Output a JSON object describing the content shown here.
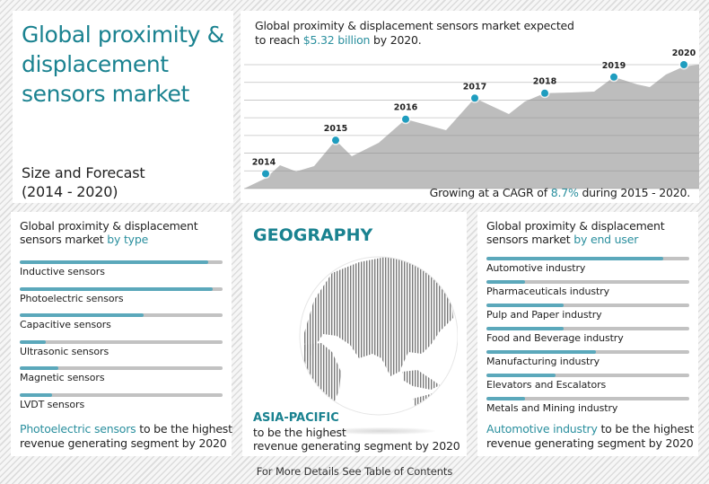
{
  "title_panel": {
    "title": "Global proximity & displacement sensors market",
    "subtitle_line1": "Size and Forecast",
    "subtitle_line2": "(2014 - 2020)"
  },
  "chart_panel": {
    "headline_line1": "Global proximity & displacement sensors market expected",
    "headline_line2_pre": "to reach ",
    "headline_highlight": "$5.32 billion",
    "headline_line2_post": " by 2020.",
    "footer_pre": "Growing at a CAGR of ",
    "footer_highlight": "8.7%",
    "footer_post": " during 2015 - 2020."
  },
  "chart_data": {
    "type": "area",
    "title": "Global proximity & displacement sensors market expected to reach $5.32 billion by 2020.",
    "subtitle": "Growing at a CAGR of 8.7% during 2015 - 2020.",
    "xlabel": "",
    "ylabel": "",
    "categories": [
      "2014",
      "2015",
      "2016",
      "2017",
      "2018",
      "2019",
      "2020"
    ],
    "values_relative_height": [
      0.12,
      0.39,
      0.56,
      0.73,
      0.77,
      0.9,
      1.0
    ],
    "annotations": {
      "2020_value": "$5.32 billion",
      "cagr_2015_2020": "8.7%"
    },
    "grid": true,
    "gridlines": 8,
    "marker_color": "#1f9dbf",
    "area_color": "#bdbdbd"
  },
  "by_type": {
    "heading_pre": "Global proximity & displacement sensors market ",
    "heading_highlight": "by type",
    "items": [
      {
        "label": "Inductive sensors",
        "pct": 93
      },
      {
        "label": "Photoelectric sensors",
        "pct": 95
      },
      {
        "label": "Capacitive sensors",
        "pct": 61
      },
      {
        "label": "Ultrasonic sensors",
        "pct": 13
      },
      {
        "label": "Magnetic sensors",
        "pct": 19
      },
      {
        "label": "LVDT sensors",
        "pct": 16
      }
    ],
    "conclusion_highlight": "Photoelectric sensors",
    "conclusion_rest": " to be the highest revenue generating segment by 2020"
  },
  "geography": {
    "title": "GEOGRAPHY",
    "region": "ASIA-PACIFIC",
    "region_desc_line1": "to be the highest",
    "region_desc_line2": "revenue generating segment by 2020"
  },
  "by_end_user": {
    "heading_pre": "Global proximity & displacement sensors market ",
    "heading_highlight": "by end user",
    "items": [
      {
        "label": "Automotive industry",
        "pct": 87
      },
      {
        "label": "Pharmaceuticals industry",
        "pct": 19
      },
      {
        "label": "Pulp and Paper industry",
        "pct": 38
      },
      {
        "label": "Food and Beverage industry",
        "pct": 38
      },
      {
        "label": "Manufacturing industry",
        "pct": 54
      },
      {
        "label": "Elevators and Escalators",
        "pct": 34
      },
      {
        "label": "Metals and Mining industry",
        "pct": 19
      }
    ],
    "conclusion_highlight": "Automotive industry",
    "conclusion_rest": " to be the highest revenue generating segment by 2020"
  },
  "footer": {
    "text": "For More Details See Table of Contents"
  },
  "colors": {
    "teal_title": "#1a8290",
    "teal_bar": "#5ba8bb",
    "marker": "#1f9dbf",
    "area": "#bdbdbd",
    "track": "#c2c2c2"
  }
}
